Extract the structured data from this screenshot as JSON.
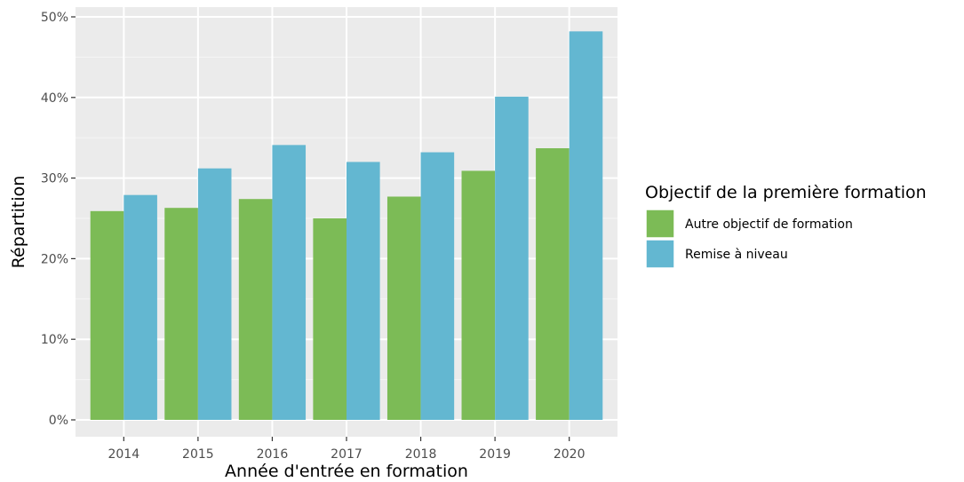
{
  "chart_data": {
    "type": "bar",
    "title": "",
    "xlabel": "Année d'entrée en formation",
    "ylabel": "Répartition",
    "categories": [
      "2014",
      "2015",
      "2016",
      "2017",
      "2018",
      "2019",
      "2020"
    ],
    "series": [
      {
        "name": "Autre objectif de formation",
        "color": "#7cbb56",
        "values": [
          25.9,
          26.3,
          27.4,
          25.0,
          27.7,
          30.9,
          33.7
        ]
      },
      {
        "name": "Remise à niveau",
        "color": "#63b7d1",
        "values": [
          27.9,
          31.2,
          34.1,
          32.0,
          33.2,
          40.1,
          48.2
        ]
      }
    ],
    "ylim": [
      0,
      50
    ],
    "yticks": [
      0,
      10,
      20,
      30,
      40,
      50
    ],
    "ytick_labels": [
      "0%",
      "10%",
      "20%",
      "30%",
      "40%",
      "50%"
    ],
    "grid": true,
    "legend": {
      "title": "Objectif de la première formation",
      "position": "right"
    }
  }
}
